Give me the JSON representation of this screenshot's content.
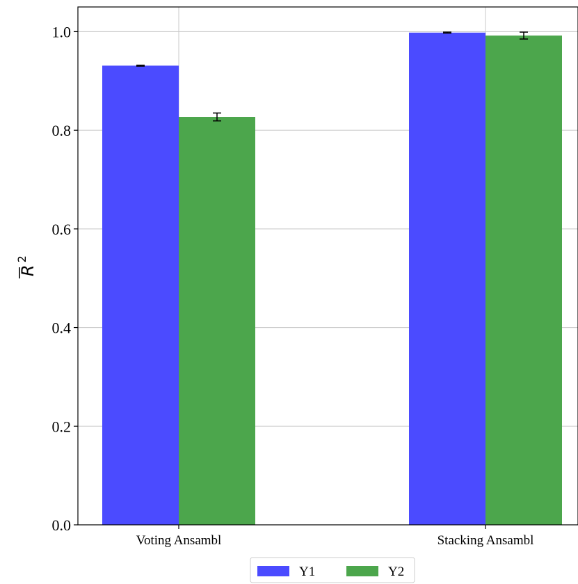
{
  "chart_data": {
    "type": "bar",
    "ylabel": "R",
    "ylabel_superscript": "2",
    "ylabel_overline": true,
    "categories": [
      "Voting Ansambl",
      "Stacking Ansambl"
    ],
    "series": [
      {
        "name": "Y1",
        "color": "#4b4bff",
        "values": [
          0.931,
          0.998
        ],
        "errors": [
          0.001,
          0.001
        ]
      },
      {
        "name": "Y2",
        "color": "#4ca64c",
        "values": [
          0.827,
          0.992
        ],
        "errors": [
          0.008,
          0.007
        ]
      }
    ],
    "ylim": [
      0,
      1.05
    ],
    "yticks": [
      "0.0",
      "0.2",
      "0.4",
      "0.6",
      "0.8",
      "1.0"
    ],
    "grid": true,
    "legend_position": "bottom-center"
  }
}
